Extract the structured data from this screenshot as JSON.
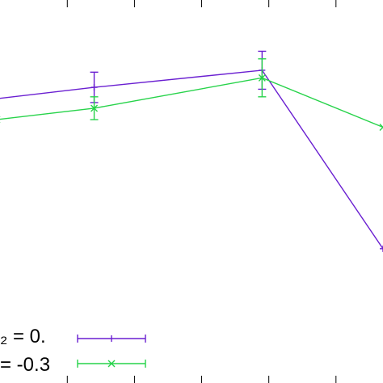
{
  "chart_data": {
    "type": "line",
    "title": "",
    "xlabel": "",
    "ylabel": "",
    "grid": false,
    "legend_position": "bottom-left",
    "series": [
      {
        "name": "₂ = 0.",
        "color": "#6a1fd1",
        "marker": "plus",
        "points": [
          {
            "x": -0.05,
            "y": 0.74,
            "err": 0.0
          },
          {
            "x": 1.4,
            "y": 0.77,
            "err": 0.04
          },
          {
            "x": 3.9,
            "y": 0.815,
            "err": 0.05
          },
          {
            "x": 5.7,
            "y": 0.345,
            "err": 0.0
          }
        ]
      },
      {
        "name": "= -0.3",
        "color": "#27d34a",
        "marker": "x",
        "points": [
          {
            "x": -0.05,
            "y": 0.685,
            "err": 0.0
          },
          {
            "x": 1.4,
            "y": 0.715,
            "err": 0.03
          },
          {
            "x": 3.9,
            "y": 0.795,
            "err": 0.05
          },
          {
            "x": 5.7,
            "y": 0.665,
            "err": 0.0
          }
        ]
      }
    ],
    "xlim": [
      -0.05,
      5.7
    ],
    "ylim": [
      0.0,
      1.0
    ],
    "x_ticks": [
      1.0,
      2.0,
      3.0,
      4.0,
      5.0
    ]
  }
}
